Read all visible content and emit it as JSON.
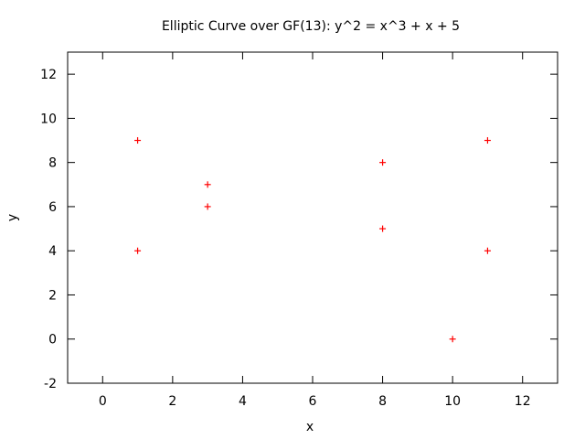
{
  "chart_data": {
    "type": "scatter",
    "title": "Elliptic Curve over GF(13): y^2 = x^3 + x + 5",
    "xlabel": "x",
    "ylabel": "y",
    "xlim": [
      -1,
      13
    ],
    "ylim": [
      -2,
      13
    ],
    "xticks": [
      0,
      2,
      4,
      6,
      8,
      10,
      12
    ],
    "yticks": [
      -2,
      0,
      2,
      4,
      6,
      8,
      10,
      12
    ],
    "grid": false,
    "legend": "none",
    "marker": "plus",
    "color": "#ff0000",
    "series": [
      {
        "points": [
          {
            "x": 1,
            "y": 4
          },
          {
            "x": 1,
            "y": 9
          },
          {
            "x": 3,
            "y": 6
          },
          {
            "x": 3,
            "y": 7
          },
          {
            "x": 8,
            "y": 5
          },
          {
            "x": 8,
            "y": 8
          },
          {
            "x": 10,
            "y": 0
          },
          {
            "x": 11,
            "y": 4
          },
          {
            "x": 11,
            "y": 9
          }
        ]
      }
    ]
  }
}
